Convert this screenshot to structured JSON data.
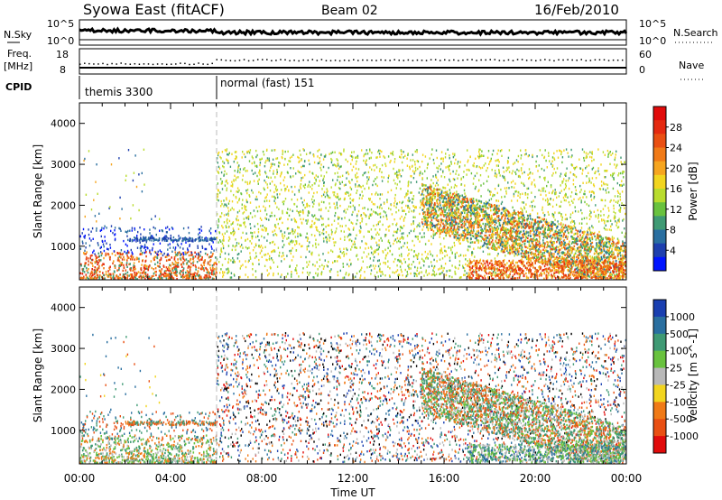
{
  "header": {
    "station": "Syowa East (fitACF)",
    "beam": "Beam 02",
    "date": "16/Feb/2010"
  },
  "top_panels": {
    "nsky": {
      "label": "N.Sky",
      "left_ticks": [
        "10^5",
        "10^0"
      ],
      "right_ticks": [
        "10^5",
        "10^0"
      ],
      "right_label": "N.Search"
    },
    "freq": {
      "label_1": "Freq.",
      "label_2": "[MHz]",
      "left_ticks": [
        "18",
        "8"
      ],
      "right_ticks": [
        "60",
        "0"
      ],
      "right_label": "Nave"
    },
    "cpid": {
      "label": "CPID",
      "segments": [
        {
          "name": "themis 3300",
          "start_hour": 0
        },
        {
          "name": "normal (fast) 151",
          "start_hour": 6
        }
      ]
    }
  },
  "chart_data": [
    {
      "type": "heatmap",
      "panel": "power",
      "ylabel": "Slant Range [km]",
      "ylim": [
        180,
        4500
      ],
      "yticks": [
        "1000",
        "2000",
        "3000",
        "4000"
      ],
      "ytick_values": [
        1000,
        2000,
        3000,
        4000
      ],
      "xlim": [
        0,
        24
      ],
      "colorbar": {
        "label": "Power [dB]",
        "ticks": [
          "4",
          "8",
          "12",
          "16",
          "20",
          "24",
          "28"
        ],
        "colors": [
          "#0014ff",
          "#1e3fae",
          "#2a6fa0",
          "#3f9a74",
          "#69c23e",
          "#b9dc2e",
          "#f2d51f",
          "#f6a51f",
          "#f07a17",
          "#e94f12",
          "#e52a10",
          "#e10b0b"
        ]
      }
    },
    {
      "type": "heatmap",
      "panel": "velocity",
      "ylabel": "Slant Range [km]",
      "ylim": [
        180,
        4500
      ],
      "yticks": [
        "1000",
        "2000",
        "3000",
        "4000"
      ],
      "ytick_values": [
        1000,
        2000,
        3000,
        4000
      ],
      "xlim": [
        0,
        24
      ],
      "xlabel": "Time UT",
      "xticks": [
        "00:00",
        "04:00",
        "08:00",
        "12:00",
        "16:00",
        "20:00",
        "00:00"
      ],
      "colorbar": {
        "label": "Velocity [m s^-1]",
        "ticks": [
          "1000",
          "500",
          "100",
          "25",
          "-25",
          "-100",
          "-500",
          "-1000"
        ],
        "colors": [
          "#1a3fb0",
          "#2a6fa0",
          "#3f9a74",
          "#69c23e",
          "#b8b8b8",
          "#f2d51f",
          "#f07a17",
          "#e94f12",
          "#e10b0b"
        ]
      }
    }
  ]
}
